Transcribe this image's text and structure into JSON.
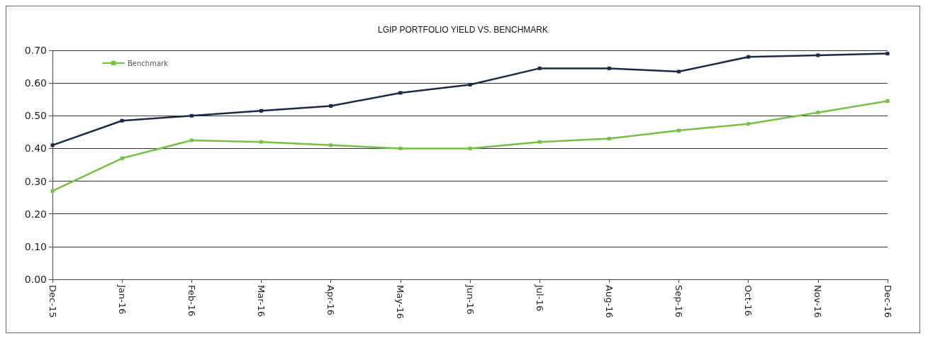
{
  "chart_data": {
    "type": "line",
    "title": "LGIP PORTFOLIO YIELD VS. BENCHMARK",
    "categories": [
      "Dec-15",
      "Jan-16",
      "Feb-16",
      "Mar-16",
      "Apr-16",
      "May-16",
      "Jun-16",
      "Jul-16",
      "Aug-16",
      "Sep-16",
      "Oct-16",
      "Nov-16",
      "Dec-16"
    ],
    "series": [
      {
        "name": "Benchmark",
        "color": "#76c043",
        "values": [
          0.27,
          0.37,
          0.425,
          0.42,
          0.41,
          0.4,
          0.4,
          0.42,
          0.43,
          0.455,
          0.475,
          0.51,
          0.545
        ]
      },
      {
        "color": "#1c2a4a",
        "values": [
          0.41,
          0.485,
          0.5,
          0.515,
          0.53,
          0.57,
          0.595,
          0.645,
          0.645,
          0.635,
          0.68,
          0.685,
          0.69
        ]
      }
    ],
    "ylim": [
      0,
      0.7
    ],
    "yticks": [
      {
        "value": 0,
        "label": "0.00"
      },
      {
        "value": 0.1,
        "label": "0.10"
      },
      {
        "value": 0.2,
        "label": "0.20"
      },
      {
        "value": 0.3,
        "label": "0.30"
      },
      {
        "value": 0.4,
        "label": "0.40"
      },
      {
        "value": 0.5,
        "label": "0.50"
      },
      {
        "value": 0.6,
        "label": "0.60"
      },
      {
        "value": 0.7,
        "label": "0.70"
      }
    ],
    "grid": "y",
    "legend": "top left",
    "marker": "square",
    "line_style": "solid"
  }
}
